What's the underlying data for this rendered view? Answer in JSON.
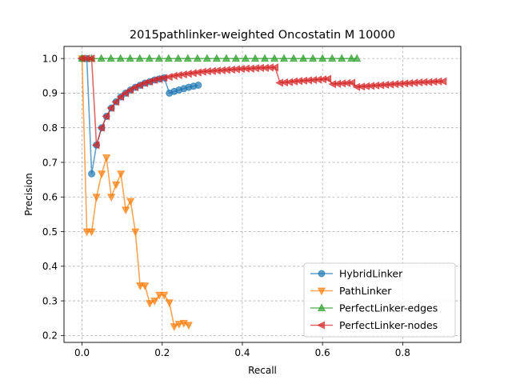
{
  "chart_data": {
    "type": "line",
    "title": "2015pathlinker-weighted Oncostatin M 10000",
    "xlabel": "Recall",
    "ylabel": "Precision",
    "xlim": [
      -0.045,
      0.945
    ],
    "ylim": [
      0.18,
      1.035
    ],
    "xticks": [
      0.0,
      0.2,
      0.4,
      0.6,
      0.8
    ],
    "xtick_labels": [
      "0.0",
      "0.2",
      "0.4",
      "0.6",
      "0.8"
    ],
    "yticks": [
      0.2,
      0.3,
      0.4,
      0.5,
      0.6,
      0.7,
      0.8,
      0.9,
      1.0
    ],
    "ytick_labels": [
      "0.2",
      "0.3",
      "0.4",
      "0.5",
      "0.6",
      "0.7",
      "0.8",
      "0.9",
      "1.0"
    ],
    "grid": true,
    "legend_position": "bottom-right",
    "series": [
      {
        "name": "HybridLinker",
        "color": "#1f77b4",
        "marker": "circle",
        "x": [
          0.0,
          0.012,
          0.024,
          0.036,
          0.049,
          0.061,
          0.073,
          0.085,
          0.097,
          0.109,
          0.121,
          0.133,
          0.145,
          0.157,
          0.169,
          0.181,
          0.193,
          0.205,
          0.218,
          0.23,
          0.242,
          0.254,
          0.266,
          0.278,
          0.29
        ],
        "y": [
          1.0,
          1.0,
          0.667,
          0.75,
          0.8,
          0.833,
          0.857,
          0.875,
          0.889,
          0.9,
          0.909,
          0.917,
          0.923,
          0.929,
          0.933,
          0.938,
          0.941,
          0.944,
          0.9,
          0.905,
          0.909,
          0.913,
          0.917,
          0.92,
          0.923
        ]
      },
      {
        "name": "PathLinker",
        "color": "#ff7f0e",
        "marker": "triangle-down",
        "x": [
          0.0,
          0.012,
          0.024,
          0.036,
          0.049,
          0.061,
          0.073,
          0.085,
          0.097,
          0.109,
          0.121,
          0.133,
          0.145,
          0.157,
          0.169,
          0.181,
          0.193,
          0.205,
          0.218,
          0.23,
          0.242,
          0.254,
          0.266
        ],
        "y": [
          1.0,
          0.5,
          0.5,
          0.6,
          0.667,
          0.714,
          0.6,
          0.636,
          0.667,
          0.563,
          0.588,
          0.5,
          0.344,
          0.344,
          0.293,
          0.3,
          0.317,
          0.317,
          0.295,
          0.226,
          0.233,
          0.236,
          0.23
        ]
      },
      {
        "name": "PerfectLinker-edges",
        "color": "#2ca02c",
        "marker": "triangle-up",
        "x": [
          0.0,
          0.024,
          0.048,
          0.072,
          0.096,
          0.12,
          0.144,
          0.168,
          0.192,
          0.216,
          0.24,
          0.264,
          0.288,
          0.312,
          0.336,
          0.36,
          0.384,
          0.408,
          0.432,
          0.456,
          0.48,
          0.504,
          0.528,
          0.552,
          0.576,
          0.6,
          0.624,
          0.648,
          0.672,
          0.686
        ],
        "y": [
          1.0,
          1.0,
          1.0,
          1.0,
          1.0,
          1.0,
          1.0,
          1.0,
          1.0,
          1.0,
          1.0,
          1.0,
          1.0,
          1.0,
          1.0,
          1.0,
          1.0,
          1.0,
          1.0,
          1.0,
          1.0,
          1.0,
          1.0,
          1.0,
          1.0,
          1.0,
          1.0,
          1.0,
          1.0,
          1.0
        ]
      },
      {
        "name": "PerfectLinker-nodes",
        "color": "#d62728",
        "marker": "triangle-left",
        "x": [
          0.0,
          0.012,
          0.024,
          0.036,
          0.049,
          0.061,
          0.073,
          0.085,
          0.097,
          0.109,
          0.121,
          0.133,
          0.145,
          0.157,
          0.169,
          0.181,
          0.193,
          0.205,
          0.218,
          0.23,
          0.242,
          0.254,
          0.266,
          0.278,
          0.29,
          0.302,
          0.314,
          0.326,
          0.338,
          0.35,
          0.362,
          0.374,
          0.386,
          0.398,
          0.41,
          0.422,
          0.434,
          0.446,
          0.458,
          0.47,
          0.482,
          0.494,
          0.506,
          0.518,
          0.53,
          0.542,
          0.554,
          0.566,
          0.578,
          0.59,
          0.602,
          0.614,
          0.626,
          0.638,
          0.65,
          0.662,
          0.674,
          0.686,
          0.698,
          0.71,
          0.722,
          0.734,
          0.746,
          0.758,
          0.77,
          0.782,
          0.794,
          0.806,
          0.818,
          0.83,
          0.842,
          0.854,
          0.866,
          0.878,
          0.89,
          0.902
        ],
        "y": [
          1.0,
          1.0,
          1.0,
          0.75,
          0.8,
          0.833,
          0.857,
          0.875,
          0.889,
          0.9,
          0.909,
          0.917,
          0.923,
          0.929,
          0.933,
          0.938,
          0.941,
          0.944,
          0.947,
          0.95,
          0.952,
          0.954,
          0.956,
          0.958,
          0.96,
          0.962,
          0.963,
          0.964,
          0.965,
          0.966,
          0.967,
          0.968,
          0.969,
          0.97,
          0.971,
          0.971,
          0.972,
          0.973,
          0.973,
          0.974,
          0.974,
          0.93,
          0.931,
          0.932,
          0.934,
          0.935,
          0.936,
          0.937,
          0.938,
          0.939,
          0.94,
          0.941,
          0.926,
          0.927,
          0.928,
          0.929,
          0.93,
          0.918,
          0.919,
          0.92,
          0.921,
          0.922,
          0.923,
          0.924,
          0.925,
          0.926,
          0.927,
          0.928,
          0.929,
          0.93,
          0.931,
          0.932,
          0.932,
          0.933,
          0.934,
          0.934
        ]
      }
    ]
  }
}
